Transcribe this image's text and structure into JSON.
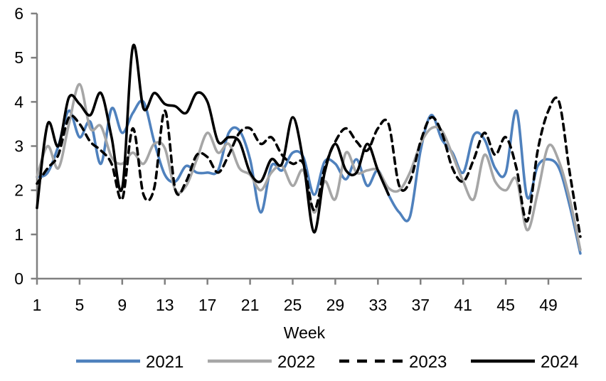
{
  "chart_data": {
    "type": "line",
    "title": "",
    "xlabel": "Week",
    "ylabel": "",
    "grid": false,
    "legend_position": "bottom",
    "ylim": [
      0,
      6
    ],
    "y_ticks": [
      0,
      1,
      2,
      3,
      4,
      5,
      6
    ],
    "x_tick_labels": [
      1,
      5,
      9,
      13,
      17,
      21,
      25,
      29,
      33,
      37,
      41,
      45,
      49
    ],
    "x_weeks_start": 1,
    "axis_color": "#808080",
    "series": [
      {
        "name": "2021",
        "color": "#4f81bd",
        "style": "solid",
        "values": [
          2.3,
          2.4,
          3.0,
          3.8,
          3.2,
          3.55,
          2.6,
          3.85,
          3.3,
          3.75,
          4.0,
          3.1,
          2.35,
          2.2,
          2.55,
          2.4,
          2.4,
          2.45,
          3.3,
          3.35,
          2.7,
          1.5,
          2.55,
          2.45,
          2.85,
          2.75,
          1.9,
          2.65,
          2.6,
          2.25,
          2.7,
          2.1,
          2.45,
          1.9,
          1.5,
          1.4,
          2.9,
          3.7,
          3.15,
          2.85,
          2.4,
          3.25,
          3.15,
          2.5,
          2.4,
          3.8,
          1.85,
          2.55,
          2.7,
          2.5,
          1.65,
          0.57
        ]
      },
      {
        "name": "2022",
        "color": "#a6a6a6",
        "style": "solid",
        "values": [
          2.3,
          3.0,
          2.5,
          3.5,
          4.4,
          3.4,
          3.45,
          2.75,
          2.6,
          2.85,
          2.6,
          3.05,
          2.95,
          2.0,
          2.1,
          2.7,
          3.3,
          2.85,
          3.05,
          2.5,
          2.35,
          2.0,
          2.4,
          2.55,
          2.1,
          2.45,
          1.5,
          2.2,
          1.8,
          2.85,
          2.4,
          2.45,
          2.45,
          2.05,
          2.0,
          2.4,
          3.05,
          3.4,
          3.35,
          2.8,
          2.2,
          1.8,
          2.8,
          2.2,
          2.0,
          2.25,
          1.1,
          1.95,
          3.0,
          2.65,
          1.8,
          0.65
        ]
      },
      {
        "name": "2023",
        "color": "#000000",
        "style": "dashed",
        "values": [
          2.15,
          2.5,
          2.8,
          3.65,
          3.5,
          3.1,
          2.9,
          2.6,
          1.8,
          3.4,
          1.9,
          2.05,
          3.8,
          2.0,
          2.2,
          2.8,
          2.75,
          2.4,
          2.8,
          3.3,
          3.4,
          3.05,
          3.2,
          2.8,
          2.6,
          2.6,
          1.55,
          2.5,
          3.1,
          3.4,
          3.1,
          2.9,
          3.4,
          3.5,
          2.1,
          2.2,
          3.1,
          3.65,
          3.3,
          2.5,
          2.2,
          2.7,
          3.3,
          2.8,
          3.2,
          2.5,
          1.3,
          2.9,
          3.8,
          4.0,
          2.4,
          0.95
        ]
      },
      {
        "name": "2024",
        "color": "#000000",
        "style": "solid",
        "values": [
          1.6,
          3.5,
          3.0,
          4.1,
          3.95,
          3.7,
          4.2,
          3.2,
          2.05,
          5.25,
          3.85,
          4.2,
          3.95,
          3.9,
          3.75,
          4.2,
          4.0,
          3.1,
          3.2,
          3.1,
          2.4,
          2.2,
          2.7,
          2.6,
          3.65,
          2.65,
          1.05,
          2.4,
          3.05,
          2.45,
          2.4,
          3.05,
          2.45,
          1.9
        ]
      }
    ],
    "legend": [
      "2021",
      "2022",
      "2023",
      "2024"
    ]
  }
}
